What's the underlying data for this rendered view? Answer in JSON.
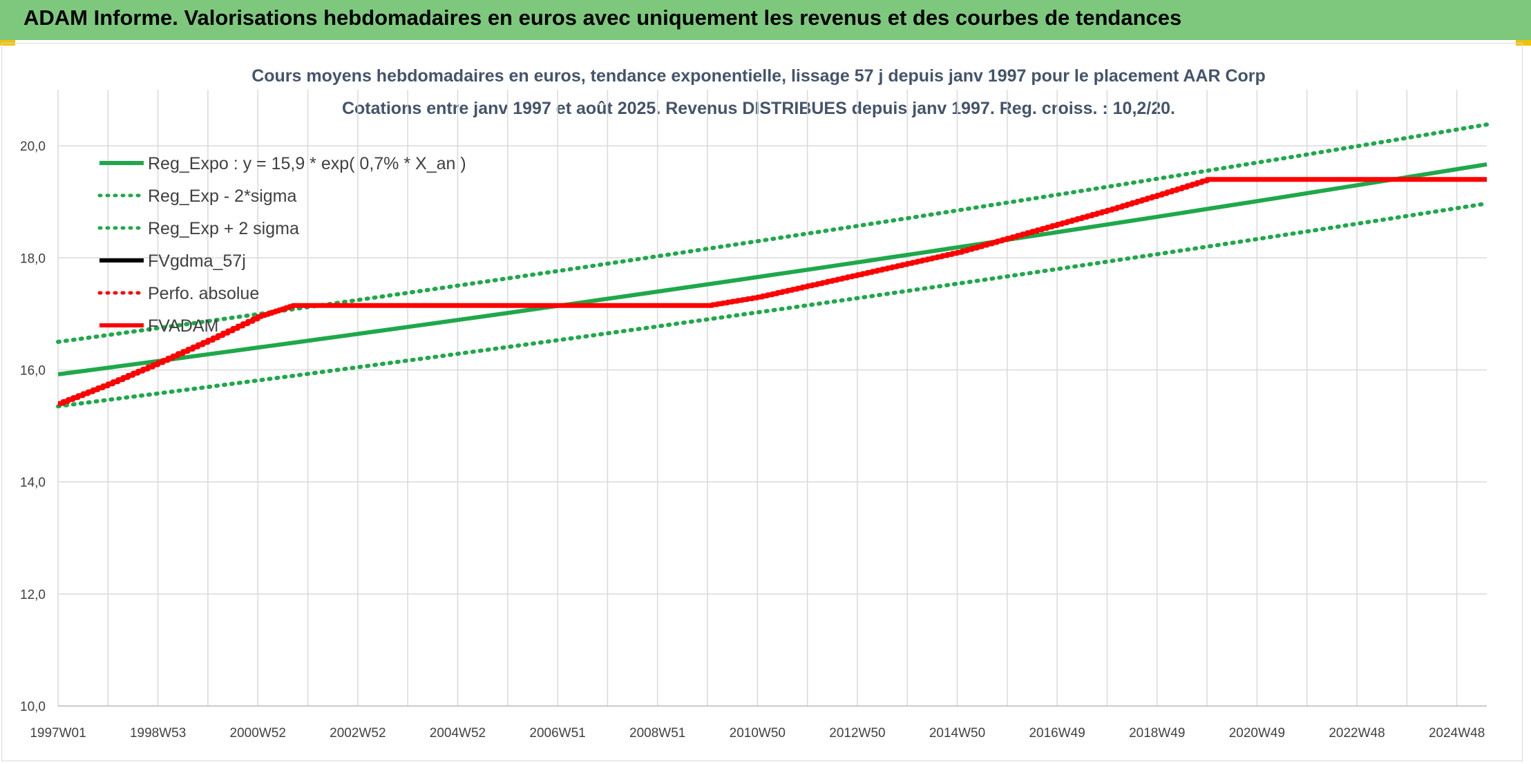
{
  "banner": {
    "title": "ADAM Informe. Valorisations hebdomadaires en euros avec uniquement les revenus et des courbes de tendances"
  },
  "colors": {
    "banner_bg": "#7dc87d",
    "trend": "#1fa84a",
    "bands": "#1fa84a",
    "adam": "#ff0000",
    "fv": "#000000"
  },
  "chart_data": {
    "type": "line",
    "title": "Cours moyens hebdomadaires en euros, tendance exponentielle, lissage 57 j depuis janv 1997 pour le placement AAR Corp",
    "subtitle": "Cotations entre janv 1997 et août 2025. Revenus DISTRIBUES depuis janv 1997. Reg. croiss. : 10,2/20.",
    "ylim": [
      10,
      21
    ],
    "yticks": [
      "10,0",
      "12,0",
      "14,0",
      "16,0",
      "18,0",
      "20,0"
    ],
    "x_tick_labels": [
      "1997W01",
      "1998W53",
      "2000W52",
      "2002W52",
      "2004W52",
      "2006W51",
      "2008W51",
      "2010W50",
      "2012W50",
      "2014W50",
      "2016W49",
      "2018W49",
      "2020W49",
      "2022W48",
      "2024W48"
    ],
    "xlim_years": [
      1997.0,
      2025.6
    ],
    "grid": true,
    "legend_position": "top-left",
    "series": [
      {
        "name": "Reg_Expo : y = 15,9 * exp( 0,7% *  X_an )",
        "style": "solid",
        "color": "#1fa84a",
        "x": [
          1997.0,
          2025.6
        ],
        "y": [
          15.92,
          19.67
        ]
      },
      {
        "name": "Reg_Exp - 2*sigma",
        "style": "dotted",
        "color": "#1fa84a",
        "x": [
          1997.0,
          2025.6
        ],
        "y": [
          15.35,
          18.97
        ]
      },
      {
        "name": "Reg_Exp + 2 sigma",
        "style": "dotted",
        "color": "#1fa84a",
        "x": [
          1997.0,
          2025.6
        ],
        "y": [
          16.5,
          20.38
        ]
      },
      {
        "name": "FVgdma_57j",
        "style": "solid",
        "color": "#000000",
        "x": [],
        "y": []
      },
      {
        "name": "Perfo. absolue",
        "style": "dotted",
        "color": "#ff0000",
        "x": [],
        "y": []
      },
      {
        "name": "FVADAM",
        "style": "solid",
        "color": "#ff0000",
        "x": [
          1997.0,
          1998.0,
          1999.0,
          2000.0,
          2001.0,
          2001.7,
          2010.0,
          2011.0,
          2012.0,
          2013.0,
          2014.0,
          2015.0,
          2016.0,
          2017.0,
          2018.0,
          2019.0,
          2020.0,
          2025.6
        ],
        "y": [
          15.4,
          15.75,
          16.13,
          16.53,
          16.95,
          17.15,
          17.15,
          17.3,
          17.5,
          17.7,
          17.9,
          18.1,
          18.35,
          18.6,
          18.85,
          19.12,
          19.4,
          19.4
        ]
      }
    ]
  }
}
